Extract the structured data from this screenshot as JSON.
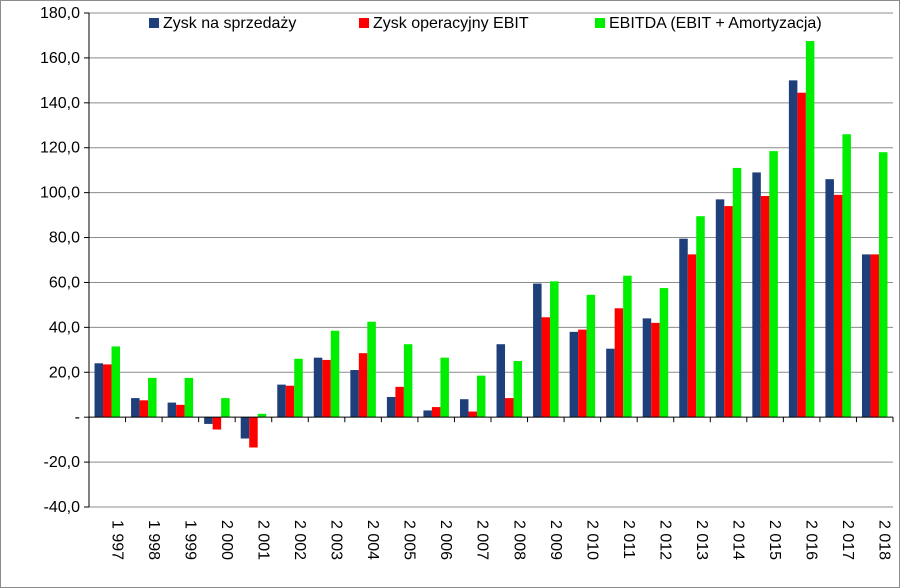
{
  "chart_data": {
    "type": "bar",
    "categories": [
      "1 997",
      "1 998",
      "1 999",
      "2 000",
      "2 001",
      "2 002",
      "2 003",
      "2 004",
      "2 005",
      "2 006",
      "2 007",
      "2 008",
      "2 009",
      "2 010",
      "2 011",
      "2 012",
      "2 013",
      "2 014",
      "2 015",
      "2 016",
      "2 017",
      "2 018"
    ],
    "series": [
      {
        "name": "Zysk na sprzedaży",
        "color": "#1f3f7a",
        "values": [
          24.0,
          8.5,
          6.5,
          -3.0,
          -9.5,
          14.5,
          26.5,
          21.0,
          9.0,
          3.0,
          8.0,
          32.5,
          59.5,
          38.0,
          30.5,
          44.0,
          79.5,
          97.0,
          109.0,
          150.0,
          106.0,
          72.5
        ]
      },
      {
        "name": "Zysk operacyjny EBIT",
        "color": "#ff0000",
        "values": [
          23.5,
          7.5,
          5.5,
          -5.5,
          -13.5,
          14.0,
          25.5,
          28.5,
          13.5,
          4.5,
          2.5,
          8.5,
          44.5,
          39.0,
          48.5,
          42.0,
          72.5,
          94.0,
          98.5,
          144.5,
          99.0,
          72.5
        ]
      },
      {
        "name": "EBITDA (EBIT + Amortyzacja)",
        "color": "#00ee00",
        "values": [
          31.5,
          17.5,
          17.5,
          8.5,
          1.5,
          26.0,
          38.5,
          42.5,
          32.5,
          26.5,
          18.5,
          25.0,
          60.5,
          54.5,
          63.0,
          57.5,
          89.5,
          111.0,
          118.5,
          167.5,
          126.0,
          118.0
        ]
      }
    ],
    "ylim": [
      -40,
      180
    ],
    "ytick_values": [
      -40,
      -20,
      0,
      20,
      40,
      60,
      80,
      100,
      120,
      140,
      160,
      180
    ],
    "ytick_labels": [
      "-40,0",
      "-20,0",
      "-",
      "20,0",
      "40,0",
      "60,0",
      "80,0",
      "100,0",
      "120,0",
      "140,0",
      "160,0",
      "180,0"
    ],
    "grid": true,
    "legend_position": "top"
  }
}
